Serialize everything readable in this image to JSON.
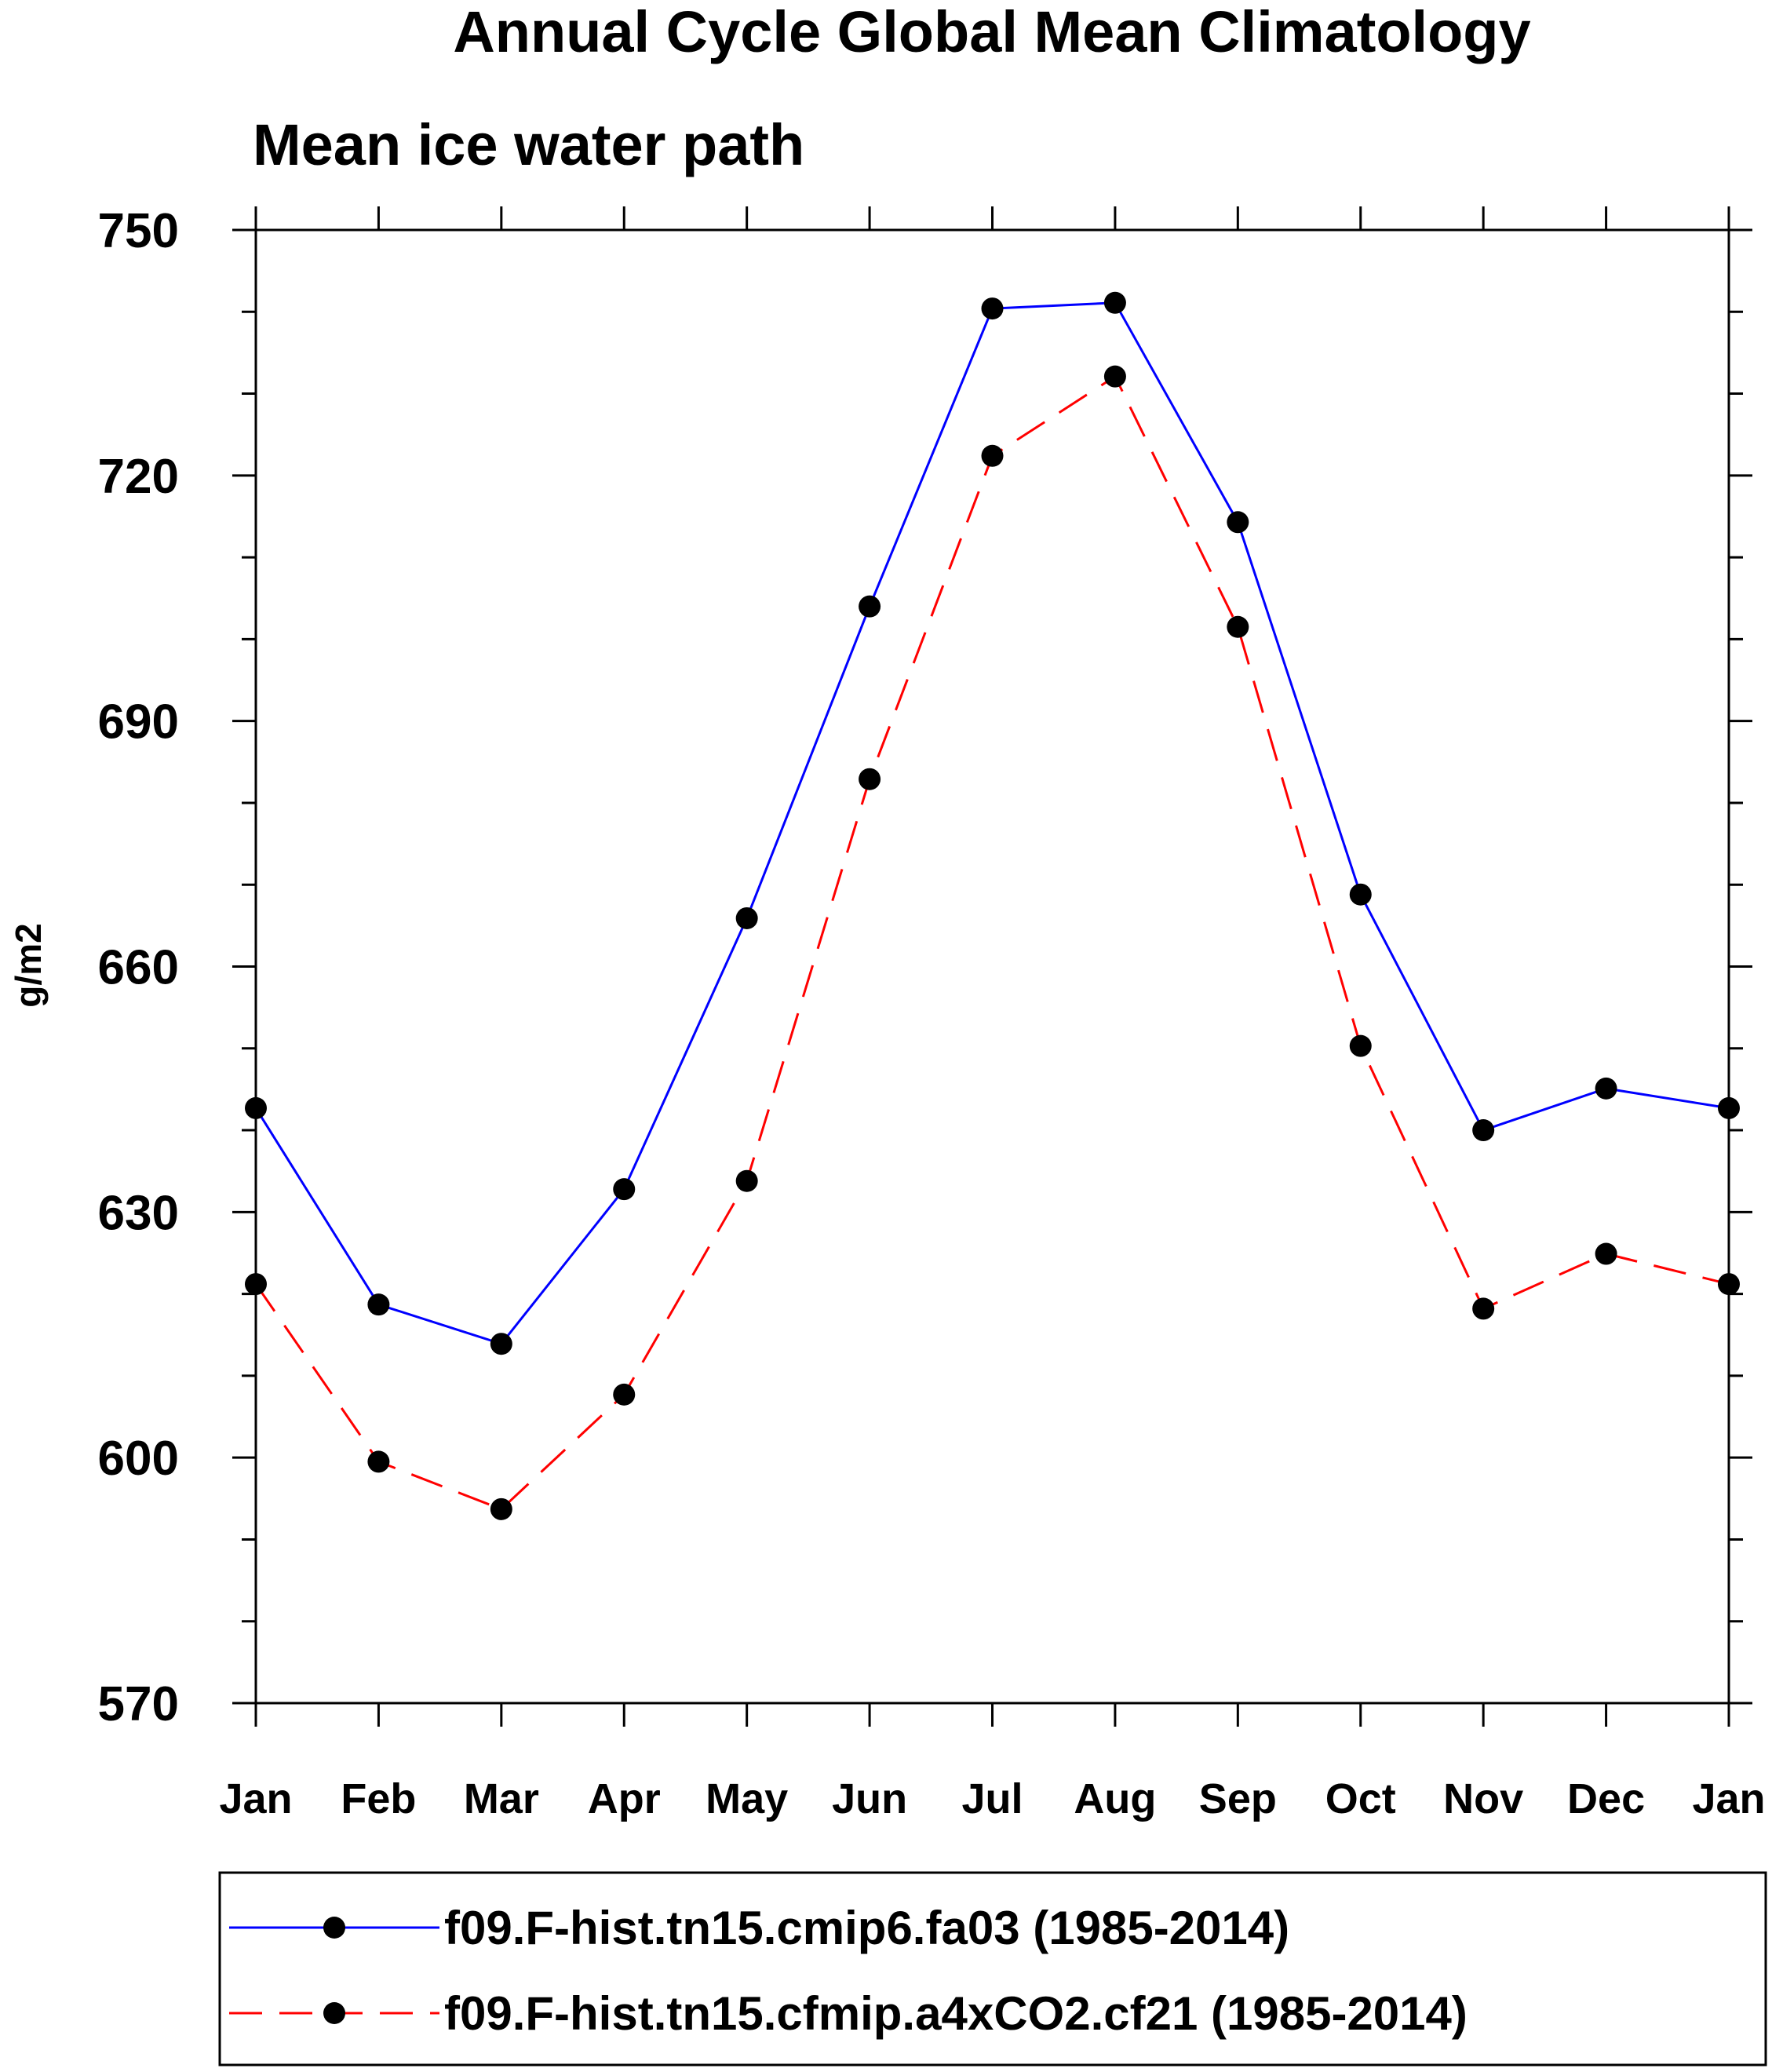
{
  "chart_data": {
    "type": "line",
    "title": "Annual Cycle Global Mean Climatology",
    "subtitle": "Mean ice water path",
    "xlabel": "",
    "ylabel": "g/m2",
    "categories": [
      "Jan",
      "Feb",
      "Mar",
      "Apr",
      "May",
      "Jun",
      "Jul",
      "Aug",
      "Sep",
      "Oct",
      "Nov",
      "Dec",
      "Jan"
    ],
    "ylim": [
      570,
      750
    ],
    "yticks": [
      570,
      600,
      630,
      660,
      690,
      720,
      750
    ],
    "ytick_labels": [
      "570",
      "600",
      "630",
      "660",
      "690",
      "720",
      "750"
    ],
    "minor_ytick_step": 10,
    "grid": false,
    "legend_position": "bottom",
    "series": [
      {
        "name": "f09.F-hist.tn15.cmip6.fa03 (1985-2014)",
        "color": "#0000ff",
        "line_style": "solid",
        "marker": "filled-circle",
        "values": [
          642.7,
          618.7,
          613.9,
          632.8,
          665.9,
          704.0,
          740.4,
          741.1,
          714.3,
          668.8,
          640.0,
          645.1,
          642.7
        ]
      },
      {
        "name": "f09.F-hist.tn15.cfmip.a4xCO2.cf21 (1985-2014)",
        "color": "#ff0000",
        "line_style": "dashed",
        "marker": "filled-circle",
        "values": [
          621.2,
          599.5,
          593.7,
          607.7,
          633.8,
          682.9,
          722.4,
          732.1,
          701.5,
          650.3,
          618.2,
          624.9,
          621.2
        ]
      }
    ]
  }
}
